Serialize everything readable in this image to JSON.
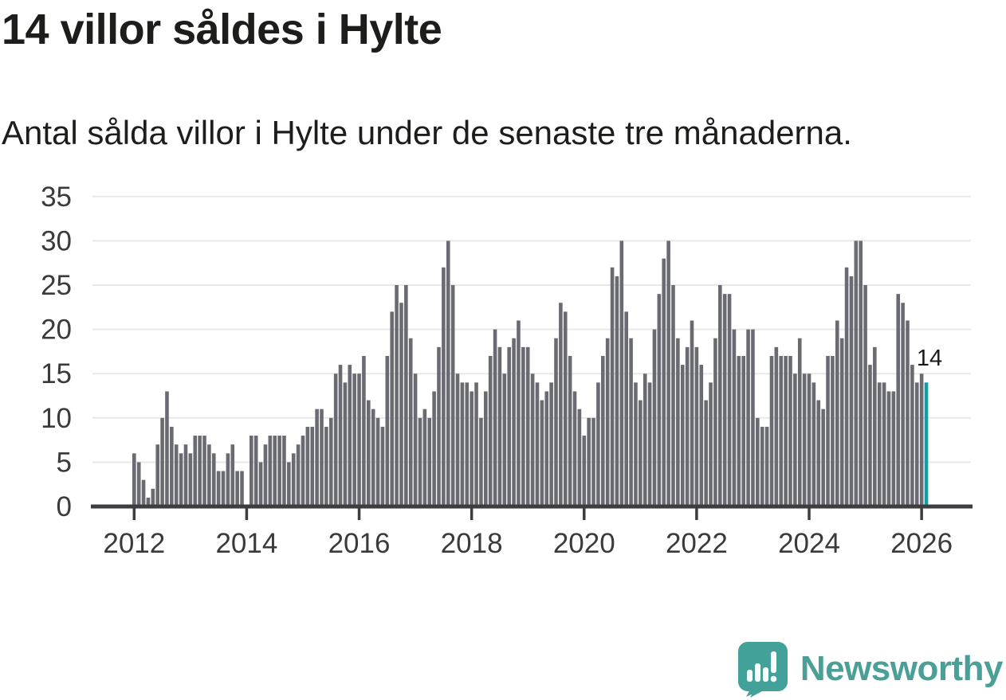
{
  "header": {
    "title": "14 villor såldes i Hylte",
    "subtitle": "Antal sålda villor i Hylte under de senaste tre månaderna."
  },
  "chart_data": {
    "type": "bar",
    "title": "14 villor såldes i Hylte",
    "subtitle": "Antal sålda villor i Hylte under de senaste tre månaderna.",
    "x_start_month": "2012-01",
    "x_interval": "monthly",
    "values": [
      6,
      5,
      3,
      1,
      2,
      7,
      10,
      13,
      9,
      7,
      6,
      7,
      6,
      8,
      8,
      8,
      7,
      6,
      4,
      4,
      6,
      7,
      4,
      4,
      0,
      8,
      8,
      5,
      7,
      8,
      8,
      8,
      8,
      5,
      6,
      7,
      8,
      9,
      9,
      11,
      11,
      9,
      10,
      15,
      16,
      14,
      16,
      15,
      15,
      17,
      12,
      11,
      10,
      9,
      17,
      22,
      25,
      23,
      25,
      19,
      15,
      10,
      11,
      10,
      13,
      18,
      27,
      30,
      25,
      15,
      14,
      14,
      13,
      14,
      10,
      13,
      17,
      20,
      18,
      15,
      18,
      19,
      21,
      18,
      18,
      15,
      14,
      12,
      13,
      14,
      19,
      23,
      22,
      17,
      13,
      11,
      8,
      10,
      10,
      14,
      17,
      19,
      27,
      26,
      30,
      22,
      19,
      14,
      12,
      15,
      14,
      20,
      24,
      28,
      30,
      25,
      19,
      16,
      18,
      21,
      18,
      16,
      12,
      14,
      19,
      25,
      24,
      24,
      20,
      17,
      17,
      20,
      20,
      10,
      9,
      9,
      17,
      18,
      17,
      17,
      17,
      15,
      19,
      15,
      15,
      14,
      12,
      11,
      17,
      17,
      21,
      19,
      27,
      26,
      30,
      30,
      25,
      16,
      18,
      14,
      14,
      13,
      13,
      24,
      23,
      21,
      16,
      14,
      15,
      14
    ],
    "highlight_last_bar": true,
    "annotation": {
      "label": "14",
      "target": "last-bar"
    },
    "ylim": [
      0,
      35
    ],
    "yticks": [
      0,
      5,
      10,
      15,
      20,
      25,
      30,
      35
    ],
    "xticks": [
      "2012",
      "2014",
      "2016",
      "2018",
      "2020",
      "2022",
      "2024",
      "2026"
    ],
    "grid": "horizontal",
    "legend": "none",
    "colors": {
      "bar": "#6a6a72",
      "highlight": "#129ea2",
      "gridline": "#e8e8e8",
      "axis": "#3d3d41",
      "tick_label": "#3a3a3a",
      "annotation_text": "#1a1a1a"
    }
  },
  "footer": {
    "brand": "Newsworthy",
    "brand_color": "#4a9f96",
    "logo_bubble_color": "#42a198"
  }
}
